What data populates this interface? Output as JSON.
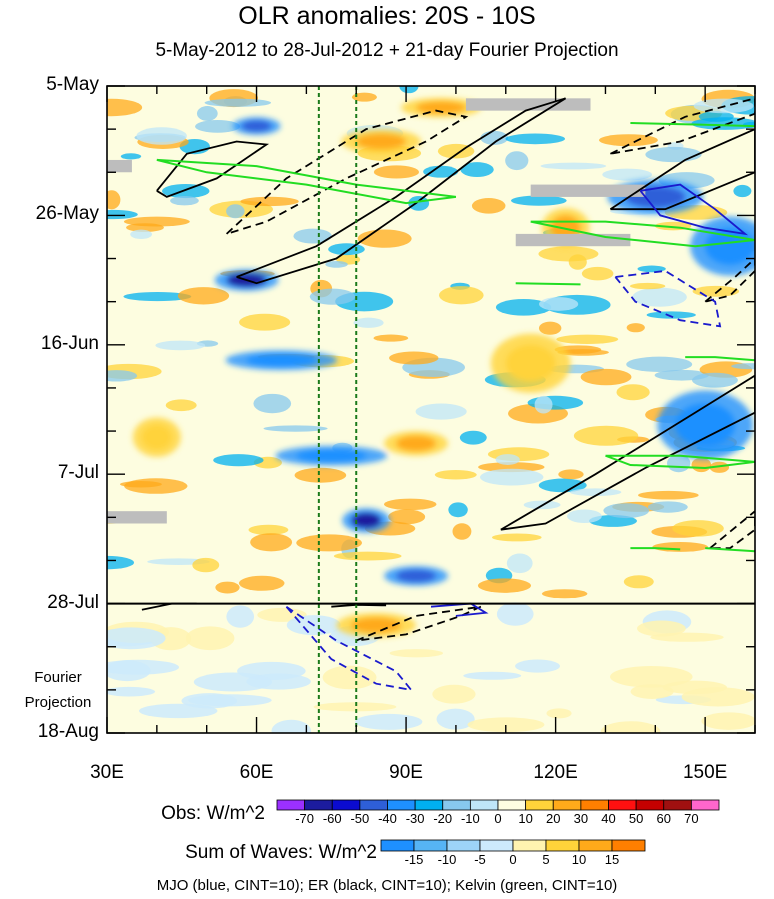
{
  "chart_data": {
    "type": "heatmap",
    "title": "OLR anomalies: 20S - 10S",
    "subtitle": "5-May-2012 to 28-Jul-2012 + 21-day Fourier Projection",
    "x_axis": {
      "ticks": [
        "30E",
        "60E",
        "90E",
        "120E",
        "150E"
      ],
      "tick_values": [
        30,
        60,
        90,
        120,
        150
      ],
      "range": [
        30,
        160
      ]
    },
    "y_axis": {
      "ticks": [
        "5-May",
        "26-May",
        "16-Jun",
        "7-Jul",
        "28-Jul",
        "18-Aug"
      ],
      "tick_days": [
        0,
        21,
        42,
        63,
        84,
        105
      ],
      "reversed": true,
      "range_days": [
        0,
        105
      ]
    },
    "projection_label": [
      "Fourier",
      "Projection"
    ],
    "reference_longitudes": [
      72.5,
      80
    ],
    "projection_start_day": 84,
    "obs_colorbar": {
      "title": "Obs: W/m^2",
      "labels": [
        "-70",
        "-60",
        "-50",
        "-40",
        "-30",
        "-20",
        "-10",
        "0",
        "10",
        "20",
        "30",
        "40",
        "50",
        "60",
        "70"
      ],
      "colors": [
        "#9b30ff",
        "#1c1c9e",
        "#0b0bd0",
        "#2e5fd8",
        "#1e90ff",
        "#00b0f0",
        "#87c8ee",
        "#bfe6f8",
        "#fdfde0",
        "#ffd33a",
        "#ffaa1a",
        "#ff7f00",
        "#ff1010",
        "#c40000",
        "#a01010",
        "#ff66cc"
      ]
    },
    "waves_colorbar": {
      "title": "Sum of Waves: W/m^2",
      "labels": [
        "-15",
        "-10",
        "-5",
        "0",
        "5",
        "10",
        "15"
      ],
      "colors": [
        "#1e90ff",
        "#56b4f5",
        "#9dd4f8",
        "#cdeafc",
        "#fff3b0",
        "#ffd33a",
        "#ffaa1a",
        "#ff7f00"
      ]
    },
    "features": [
      {
        "type": "negative",
        "lon": 58,
        "day": 31.5,
        "w": 8,
        "h": 2.2,
        "level": -40
      },
      {
        "type": "negative",
        "lon": 60,
        "day": 6.5,
        "w": 6,
        "h": 1.8,
        "level": -30
      },
      {
        "type": "negative",
        "lon": 82,
        "day": 70.5,
        "w": 6,
        "h": 2.5,
        "level": -40
      },
      {
        "type": "negative",
        "lon": 92,
        "day": 79.5,
        "w": 8,
        "h": 2,
        "level": -30
      },
      {
        "type": "negative",
        "lon": 140,
        "day": 18,
        "w": 12,
        "h": 3.5,
        "level": -30
      },
      {
        "type": "negative",
        "lon": 155,
        "day": 26,
        "w": 10,
        "h": 6,
        "level": -20
      },
      {
        "type": "negative",
        "lon": 150,
        "day": 55,
        "w": 12,
        "h": 7,
        "level": -20
      },
      {
        "type": "negative",
        "lon": 65,
        "day": 44.5,
        "w": 14,
        "h": 2,
        "level": -20
      },
      {
        "type": "negative",
        "lon": 75,
        "day": 60,
        "w": 14,
        "h": 2,
        "level": -20
      },
      {
        "type": "positive",
        "lon": 97,
        "day": 3.5,
        "w": 10,
        "h": 2,
        "level": 20
      },
      {
        "type": "positive",
        "lon": 85,
        "day": 9,
        "w": 10,
        "h": 2.5,
        "level": 20
      },
      {
        "type": "positive",
        "lon": 92,
        "day": 58,
        "w": 8,
        "h": 2.5,
        "level": 20
      },
      {
        "type": "positive",
        "lon": 122,
        "day": 23,
        "w": 6,
        "h": 4,
        "level": 20
      },
      {
        "type": "positive",
        "lon": 115,
        "day": 45,
        "w": 10,
        "h": 6,
        "level": 10
      },
      {
        "type": "positive",
        "lon": 40,
        "day": 57,
        "w": 6,
        "h": 4,
        "level": 10
      },
      {
        "type": "positive",
        "lon": 84,
        "day": 87.5,
        "w": 10,
        "h": 2.5,
        "level": 20
      }
    ],
    "missing_data": [
      {
        "lon0": 102,
        "lon1": 127,
        "day0": 2,
        "day1": 4
      },
      {
        "lon0": 115,
        "lon1": 138,
        "day0": 16,
        "day1": 18
      },
      {
        "lon0": 112,
        "lon1": 135,
        "day0": 24,
        "day1": 26
      },
      {
        "lon0": 30,
        "lon1": 42,
        "day0": 69,
        "day1": 71
      },
      {
        "lon0": 30,
        "lon1": 35,
        "day0": 12,
        "day1": 14
      }
    ],
    "wave_contours": [
      {
        "wave": "ER",
        "sign": "positive",
        "points": [
          [
            56,
            31
          ],
          [
            72,
            26
          ],
          [
            88,
            18
          ],
          [
            102,
            10
          ],
          [
            114,
            4
          ],
          [
            122,
            2
          ],
          [
            108,
            9
          ],
          [
            92,
            19
          ],
          [
            76,
            28
          ],
          [
            60,
            32
          ],
          [
            56,
            31
          ]
        ]
      },
      {
        "wave": "ER",
        "sign": "negative",
        "points": [
          [
            54,
            24
          ],
          [
            66,
            15
          ],
          [
            82,
            7
          ],
          [
            96,
            4
          ],
          [
            102,
            5
          ],
          [
            94,
            9
          ],
          [
            78,
            15
          ],
          [
            62,
            22
          ],
          [
            54,
            24
          ]
        ]
      },
      {
        "wave": "ER",
        "sign": "positive",
        "points": [
          [
            40,
            17
          ],
          [
            46,
            11
          ],
          [
            56,
            9
          ],
          [
            62,
            9.5
          ],
          [
            52,
            15
          ],
          [
            42,
            18
          ],
          [
            40,
            17
          ]
        ]
      },
      {
        "wave": "ER",
        "sign": "positive",
        "points": [
          [
            109,
            72
          ],
          [
            128,
            63
          ],
          [
            148,
            53
          ],
          [
            160,
            47
          ],
          [
            160,
            53
          ],
          [
            138,
            62
          ],
          [
            118,
            71
          ],
          [
            109,
            72
          ]
        ]
      },
      {
        "wave": "ER",
        "sign": "positive",
        "points": [
          [
            131,
            20
          ],
          [
            146,
            12
          ],
          [
            160,
            7
          ],
          [
            160,
            14
          ],
          [
            142,
            20
          ],
          [
            131,
            20
          ]
        ]
      },
      {
        "wave": "ER",
        "sign": "negative",
        "points": [
          [
            131,
            11
          ],
          [
            146,
            5
          ],
          [
            160,
            2
          ],
          [
            160,
            4.5
          ],
          [
            145,
            9
          ],
          [
            131,
            11
          ]
        ]
      },
      {
        "wave": "ER",
        "sign": "negative",
        "points": [
          [
            150,
            35
          ],
          [
            156,
            31
          ],
          [
            160,
            28
          ],
          [
            160,
            30
          ],
          [
            155,
            34
          ],
          [
            150,
            35
          ]
        ]
      },
      {
        "wave": "ER",
        "sign": "negative",
        "points": [
          [
            151,
            75
          ],
          [
            157,
            71
          ],
          [
            160,
            69
          ],
          [
            160,
            72
          ],
          [
            155,
            75
          ],
          [
            151,
            75
          ]
        ]
      },
      {
        "wave": "ER",
        "sign": "positive",
        "points": [
          [
            37,
            85
          ],
          [
            43,
            84
          ],
          [
            48,
            84
          ]
        ]
      },
      {
        "wave": "ER",
        "sign": "positive",
        "points": [
          [
            75,
            84.5
          ],
          [
            80,
            84.2
          ],
          [
            86,
            84.3
          ]
        ]
      },
      {
        "wave": "ER",
        "sign": "negative",
        "points": [
          [
            80,
            90
          ],
          [
            92,
            86
          ],
          [
            105,
            84.5
          ],
          [
            101,
            86
          ],
          [
            90,
            89
          ],
          [
            80,
            90
          ]
        ]
      },
      {
        "wave": "MJO",
        "sign": "positive",
        "points": [
          [
            137,
            17
          ],
          [
            145,
            16
          ],
          [
            152,
            20
          ],
          [
            158,
            24
          ],
          [
            150,
            23
          ],
          [
            141,
            21
          ],
          [
            137,
            17
          ]
        ]
      },
      {
        "wave": "MJO",
        "sign": "negative",
        "points": [
          [
            132,
            31
          ],
          [
            142,
            30
          ],
          [
            152,
            35
          ],
          [
            153,
            39
          ],
          [
            145,
            38
          ],
          [
            136,
            35
          ],
          [
            132,
            31
          ]
        ]
      },
      {
        "wave": "MJO",
        "sign": "negative",
        "points": [
          [
            66,
            84.5
          ],
          [
            76,
            90
          ],
          [
            88,
            95
          ],
          [
            91,
            98
          ],
          [
            84,
            97
          ],
          [
            75,
            93
          ],
          [
            66,
            84.5
          ]
        ]
      },
      {
        "wave": "MJO",
        "sign": "positive",
        "points": [
          [
            95,
            84.5
          ],
          [
            103,
            84
          ],
          [
            106,
            85.5
          ],
          [
            100,
            86
          ]
        ]
      },
      {
        "wave": "Kelvin",
        "sign": "positive",
        "points": [
          [
            40,
            12
          ],
          [
            60,
            13
          ],
          [
            80,
            16
          ],
          [
            100,
            18
          ],
          [
            90,
            19
          ],
          [
            70,
            16
          ],
          [
            50,
            14
          ],
          [
            40,
            12
          ]
        ]
      },
      {
        "wave": "Kelvin",
        "sign": "positive",
        "points": [
          [
            115,
            22
          ],
          [
            130,
            22
          ],
          [
            145,
            23
          ],
          [
            160,
            25
          ],
          [
            148,
            26
          ],
          [
            130,
            24.5
          ],
          [
            115,
            22
          ]
        ]
      },
      {
        "wave": "Kelvin",
        "sign": "positive",
        "points": [
          [
            130,
            60
          ],
          [
            145,
            60
          ],
          [
            160,
            61
          ],
          [
            150,
            62
          ],
          [
            135,
            61.5
          ],
          [
            130,
            60
          ]
        ]
      },
      {
        "wave": "Kelvin",
        "sign": "positive",
        "points": [
          [
            146,
            44
          ],
          [
            152,
            44
          ],
          [
            160,
            44.5
          ]
        ]
      },
      {
        "wave": "Kelvin",
        "sign": "positive",
        "points": [
          [
            135,
            75
          ],
          [
            140,
            75
          ],
          [
            145,
            75.2
          ]
        ]
      },
      {
        "wave": "Kelvin",
        "sign": "positive",
        "points": [
          [
            150,
            75
          ],
          [
            160,
            75.5
          ]
        ]
      },
      {
        "wave": "Kelvin",
        "sign": "positive",
        "points": [
          [
            135,
            6
          ],
          [
            150,
            6.3
          ],
          [
            160,
            6.5
          ]
        ]
      },
      {
        "wave": "Kelvin",
        "sign": "positive",
        "points": [
          [
            112,
            32
          ],
          [
            125,
            32.2
          ]
        ]
      }
    ],
    "legend": "MJO (blue, CINT=10); ER (black, CINT=10); Kelvin (green, CINT=10)"
  }
}
